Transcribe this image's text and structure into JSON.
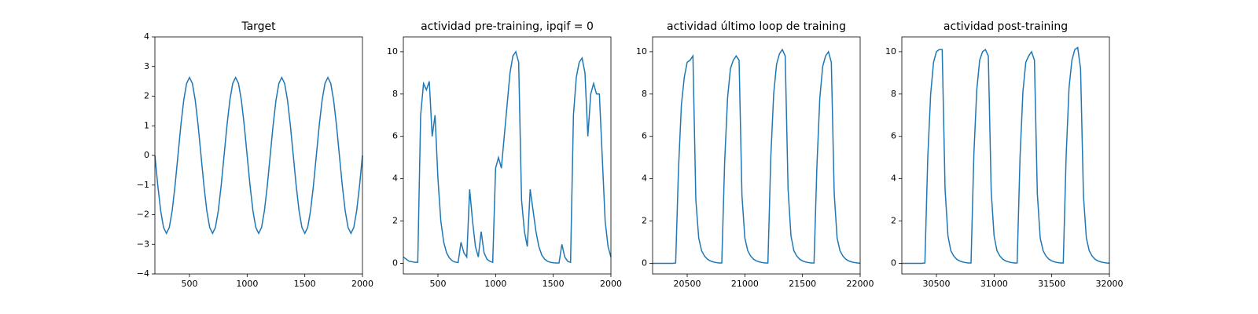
{
  "chart_data": [
    {
      "type": "line",
      "title": "Target",
      "color": "#1f77b4",
      "x": [
        200,
        225,
        250,
        275,
        300,
        325,
        350,
        375,
        400,
        425,
        450,
        475,
        500,
        525,
        550,
        575,
        600,
        625,
        650,
        675,
        700,
        725,
        750,
        775,
        800,
        825,
        850,
        875,
        900,
        925,
        950,
        975,
        1000,
        1025,
        1050,
        1075,
        1100,
        1125,
        1150,
        1175,
        1200,
        1225,
        1250,
        1275,
        1300,
        1325,
        1350,
        1375,
        1400,
        1425,
        1450,
        1475,
        1500,
        1525,
        1550,
        1575,
        1600,
        1625,
        1650,
        1675,
        1700,
        1725,
        1750,
        1775,
        1800,
        1825,
        1850,
        1875,
        1900,
        1925,
        1950,
        1975,
        2000
      ],
      "values": [
        0,
        -1.01,
        -1.86,
        -2.43,
        -2.63,
        -2.43,
        -1.86,
        -1.01,
        0,
        1.01,
        1.86,
        2.43,
        2.63,
        2.43,
        1.86,
        1.01,
        0,
        -1.01,
        -1.86,
        -2.43,
        -2.63,
        -2.43,
        -1.86,
        -1.01,
        0,
        1.01,
        1.86,
        2.43,
        2.63,
        2.43,
        1.86,
        1.01,
        0,
        -1.01,
        -1.86,
        -2.43,
        -2.63,
        -2.43,
        -1.86,
        -1.01,
        0,
        1.01,
        1.86,
        2.43,
        2.63,
        2.43,
        1.86,
        1.01,
        0,
        -1.01,
        -1.86,
        -2.43,
        -2.63,
        -2.43,
        -1.86,
        -1.01,
        0,
        1.01,
        1.86,
        2.43,
        2.63,
        2.43,
        1.86,
        1.01,
        0,
        -1.01,
        -1.86,
        -2.43,
        -2.63,
        -2.43,
        -1.86,
        -1.01,
        0
      ],
      "xlim": [
        200,
        2000
      ],
      "xticks": [
        500,
        1000,
        1500,
        2000
      ],
      "ylim": [
        -4,
        4
      ],
      "yticks": [
        {
          "value": -4,
          "label": "−4"
        },
        {
          "value": -3,
          "label": "−3"
        },
        {
          "value": -2,
          "label": "−2"
        },
        {
          "value": -1,
          "label": "−1"
        },
        0,
        1,
        2,
        3,
        4
      ]
    },
    {
      "type": "line",
      "title": "actividad pre-training, ipqif = 0",
      "color": "#1f77b4",
      "x": [
        200,
        225,
        250,
        275,
        300,
        325,
        350,
        375,
        400,
        425,
        450,
        475,
        500,
        525,
        550,
        575,
        600,
        625,
        650,
        675,
        700,
        725,
        750,
        775,
        800,
        825,
        850,
        875,
        900,
        925,
        950,
        975,
        1000,
        1025,
        1050,
        1075,
        1100,
        1125,
        1150,
        1175,
        1200,
        1225,
        1250,
        1275,
        1300,
        1325,
        1350,
        1375,
        1400,
        1425,
        1450,
        1475,
        1500,
        1525,
        1550,
        1575,
        1600,
        1625,
        1650,
        1675,
        1700,
        1725,
        1750,
        1775,
        1800,
        1825,
        1850,
        1875,
        1900,
        1925,
        1950,
        1975,
        2000
      ],
      "values": [
        0.3,
        0.2,
        0.1,
        0.08,
        0.05,
        0.05,
        7,
        8.5,
        8.2,
        8.6,
        6,
        7,
        4,
        2,
        1,
        0.5,
        0.25,
        0.12,
        0.06,
        0.04,
        1.0,
        0.5,
        0.3,
        3.5,
        2,
        0.8,
        0.3,
        1.5,
        0.5,
        0.2,
        0.1,
        0.05,
        4.5,
        5,
        4.5,
        6,
        7.5,
        9,
        9.8,
        10,
        9.5,
        3,
        1.5,
        0.8,
        3.5,
        2.5,
        1.5,
        0.8,
        0.4,
        0.2,
        0.1,
        0.05,
        0.03,
        0.02,
        0.02,
        0.9,
        0.3,
        0.1,
        0.05,
        7,
        8.8,
        9.5,
        9.7,
        9,
        6,
        8,
        8.5,
        8,
        8,
        5,
        2,
        0.8,
        0.3
      ],
      "xlim": [
        200,
        2000
      ],
      "xticks": [
        500,
        1000,
        1500,
        2000
      ],
      "ylim": [
        -0.5,
        10.7
      ],
      "yticks": [
        0,
        2,
        4,
        6,
        8,
        10
      ]
    },
    {
      "type": "line",
      "title": "actividad último loop de training",
      "color": "#1f77b4",
      "x": [
        20200,
        20225,
        20250,
        20275,
        20300,
        20325,
        20350,
        20375,
        20400,
        20425,
        20450,
        20475,
        20500,
        20525,
        20550,
        20575,
        20600,
        20625,
        20650,
        20675,
        20700,
        20725,
        20750,
        20775,
        20800,
        20825,
        20850,
        20875,
        20900,
        20925,
        20950,
        20975,
        21000,
        21025,
        21050,
        21075,
        21100,
        21125,
        21150,
        21175,
        21200,
        21225,
        21250,
        21275,
        21300,
        21325,
        21350,
        21375,
        21400,
        21425,
        21450,
        21475,
        21500,
        21525,
        21550,
        21575,
        21600,
        21625,
        21650,
        21675,
        21700,
        21725,
        21750,
        21775,
        21800,
        21825,
        21850,
        21875,
        21900,
        21925,
        21950,
        21975,
        22000
      ],
      "values": [
        0,
        0,
        0,
        0,
        0,
        0,
        0,
        0,
        0.02,
        4.5,
        7.5,
        8.8,
        9.5,
        9.6,
        9.8,
        3,
        1.2,
        0.6,
        0.35,
        0.2,
        0.12,
        0.07,
        0.04,
        0.02,
        0.02,
        4.8,
        7.8,
        9.2,
        9.6,
        9.8,
        9.6,
        3.2,
        1.2,
        0.6,
        0.35,
        0.2,
        0.12,
        0.07,
        0.04,
        0.02,
        0.02,
        5,
        8,
        9.4,
        9.9,
        10.1,
        9.8,
        3.5,
        1.3,
        0.6,
        0.35,
        0.2,
        0.12,
        0.07,
        0.04,
        0.02,
        0.02,
        4.6,
        7.8,
        9.3,
        9.8,
        10.0,
        9.5,
        3.3,
        1.2,
        0.6,
        0.35,
        0.2,
        0.12,
        0.07,
        0.04,
        0.02,
        0.01
      ],
      "xlim": [
        20200,
        22000
      ],
      "xticks": [
        20500,
        21000,
        21500,
        22000
      ],
      "ylim": [
        -0.5,
        10.7
      ],
      "yticks": [
        0,
        2,
        4,
        6,
        8,
        10
      ]
    },
    {
      "type": "line",
      "title": "actividad post-training",
      "color": "#1f77b4",
      "x": [
        30200,
        30225,
        30250,
        30275,
        30300,
        30325,
        30350,
        30375,
        30400,
        30425,
        30450,
        30475,
        30500,
        30525,
        30550,
        30575,
        30600,
        30625,
        30650,
        30675,
        30700,
        30725,
        30750,
        30775,
        30800,
        30825,
        30850,
        30875,
        30900,
        30925,
        30950,
        30975,
        31000,
        31025,
        31050,
        31075,
        31100,
        31125,
        31150,
        31175,
        31200,
        31225,
        31250,
        31275,
        31300,
        31325,
        31350,
        31375,
        31400,
        31425,
        31450,
        31475,
        31500,
        31525,
        31550,
        31575,
        31600,
        31625,
        31650,
        31675,
        31700,
        31725,
        31750,
        31775,
        31800,
        31825,
        31850,
        31875,
        31900,
        31925,
        31950,
        31975,
        32000
      ],
      "values": [
        0,
        0,
        0,
        0,
        0,
        0,
        0,
        0,
        0.02,
        5,
        8,
        9.5,
        10,
        10.1,
        10.1,
        3.5,
        1.3,
        0.6,
        0.35,
        0.2,
        0.12,
        0.07,
        0.04,
        0.02,
        0.02,
        5.2,
        8.2,
        9.6,
        10,
        10.1,
        9.8,
        3.4,
        1.3,
        0.6,
        0.35,
        0.2,
        0.12,
        0.07,
        0.04,
        0.02,
        0.02,
        5,
        8.1,
        9.5,
        9.8,
        10,
        9.6,
        3.3,
        1.2,
        0.6,
        0.35,
        0.2,
        0.12,
        0.07,
        0.04,
        0.02,
        0.02,
        5.1,
        8.3,
        9.6,
        10.1,
        10.2,
        9.2,
        3.2,
        1.2,
        0.6,
        0.35,
        0.2,
        0.12,
        0.07,
        0.04,
        0.02,
        0.01
      ],
      "xlim": [
        30200,
        32000
      ],
      "xticks": [
        30500,
        31000,
        31500,
        32000
      ],
      "ylim": [
        -0.5,
        10.7
      ],
      "yticks": [
        0,
        2,
        4,
        6,
        8,
        10
      ]
    }
  ]
}
